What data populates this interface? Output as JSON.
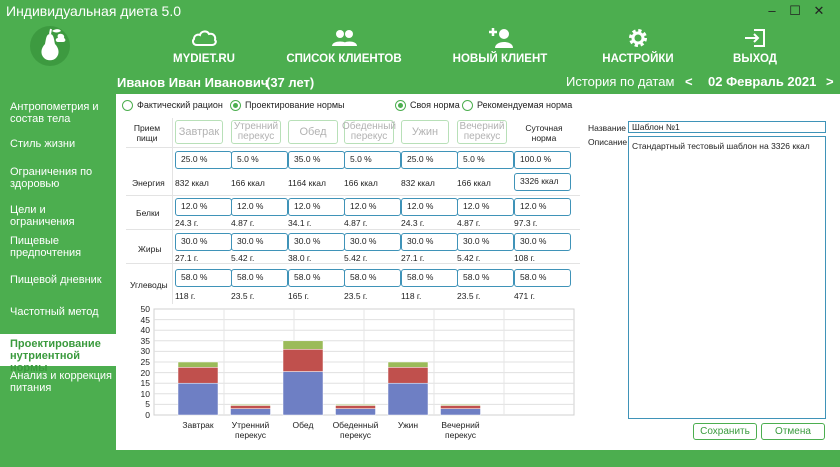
{
  "window": {
    "title": "Индивидуальная диета 5.0",
    "controls": [
      "–",
      "☐",
      "✕"
    ]
  },
  "nav": {
    "mydiet": "MYDIET.RU",
    "clients": "СПИСОК КЛИЕНТОВ",
    "new_client": "НОВЫЙ КЛИЕНТ",
    "settings": "НАСТРОЙКИ",
    "exit": "ВЫХОД"
  },
  "client": {
    "name": "Иванов Иван Иванович",
    "age": "(37 лет)",
    "history_label": "История по датам",
    "prev": "<",
    "date": "02 Февраль 2021",
    "next": ">"
  },
  "sidebar": {
    "items": [
      {
        "label": "Антропометрия и состав тела"
      },
      {
        "label": "Стиль жизни"
      },
      {
        "label": "Ограничения по здоровью"
      },
      {
        "label": "Цели и ограничения"
      },
      {
        "label": "Пищевые предпочтения"
      },
      {
        "label": "Пищевой дневник"
      },
      {
        "label": "Частотный метод"
      },
      {
        "label": "Проектирование нутриентной нормы"
      },
      {
        "label": "Анализ и коррекция питания"
      }
    ]
  },
  "radios": {
    "actual": "Фактический рацион",
    "design": "Проектирование нормы",
    "own": "Своя норма",
    "recommended": "Рекомендуемая норма"
  },
  "table": {
    "meal_header": "Прием пищи",
    "daily_header": "Суточная норма",
    "meals": [
      "Завтрак",
      "Утренний перекус",
      "Обед",
      "Обеденный перекус",
      "Ужин",
      "Вечерний перекус"
    ],
    "rows": [
      {
        "label": "Энергия",
        "pct": [
          "25.0 %",
          "5.0 %",
          "35.0 %",
          "5.0 %",
          "25.0 %",
          "5.0 %"
        ],
        "abs": [
          "832 ккал",
          "166 ккал",
          "1164 ккал",
          "166 ккал",
          "832 ккал",
          "166 ккал"
        ],
        "daily_pct": "100.0 %",
        "daily_abs": "3326 ккал"
      },
      {
        "label": "Белки",
        "pct": [
          "12.0 %",
          "12.0 %",
          "12.0 %",
          "12.0 %",
          "12.0 %",
          "12.0 %"
        ],
        "abs": [
          "24.3 г.",
          "4.87 г.",
          "34.1 г.",
          "4.87 г.",
          "24.3 г.",
          "4.87 г."
        ],
        "daily_pct": "12.0 %",
        "daily_abs": "97.3 г."
      },
      {
        "label": "Жиры",
        "pct": [
          "30.0 %",
          "30.0 %",
          "30.0 %",
          "30.0 %",
          "30.0 %",
          "30.0 %"
        ],
        "abs": [
          "27.1 г.",
          "5.42 г.",
          "38.0 г.",
          "5.42 г.",
          "27.1 г.",
          "5.42 г."
        ],
        "daily_pct": "30.0 %",
        "daily_abs": "108 г."
      },
      {
        "label": "Углеводы",
        "pct": [
          "58.0 %",
          "58.0 %",
          "58.0 %",
          "58.0 %",
          "58.0 %",
          "58.0 %"
        ],
        "abs": [
          "118 г.",
          "23.5 г.",
          "165 г.",
          "23.5 г.",
          "118 г.",
          "23.5 г."
        ],
        "daily_pct": "58.0 %",
        "daily_abs": "471 г."
      }
    ]
  },
  "template": {
    "name_label": "Название",
    "name_value": "Шаблон №1",
    "desc_label": "Описание",
    "desc_value": "Стандартный тестовый шаблон на 3326 ккал"
  },
  "buttons": {
    "save": "Сохранить",
    "cancel": "Отмена"
  },
  "colors": {
    "brand": "#4cae4f",
    "accent_border": "#3f93b8",
    "carbs": "#6e7fc4",
    "fats": "#c0504d",
    "proteins": "#9bbb59"
  },
  "chart_data": {
    "type": "bar",
    "stacked": true,
    "categories": [
      "Завтрак",
      "Утренний перекус",
      "Обед",
      "Обеденный перекус",
      "Ужин",
      "Вечерний перекус"
    ],
    "series": [
      {
        "values": [
          15,
          3,
          20.5,
          3,
          15,
          3
        ],
        "color": "#6e7fc4"
      },
      {
        "values": [
          7.5,
          1.5,
          10.5,
          1.5,
          7.5,
          1.5
        ],
        "color": "#c0504d"
      },
      {
        "values": [
          2.5,
          0.5,
          4,
          0.5,
          2.5,
          0.5
        ],
        "color": "#9bbb59"
      }
    ],
    "yticks": [
      "0",
      "5",
      "10",
      "15",
      "20",
      "25",
      "30",
      "35",
      "40",
      "45",
      "50"
    ],
    "ylim": [
      0,
      50
    ],
    "grid": true
  }
}
